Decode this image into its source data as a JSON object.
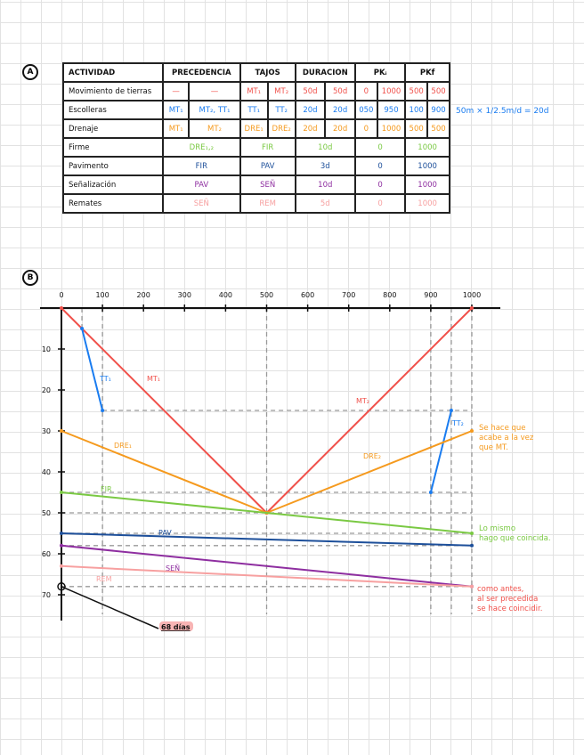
{
  "section_a": {
    "label": "A"
  },
  "section_b": {
    "label": "B"
  },
  "table": {
    "headers": [
      "ACTIVIDAD",
      "PRECEDENCIA",
      "TAJOS",
      "DURACION",
      "PKᵢ",
      "PKf"
    ],
    "rows": [
      {
        "actividad": "Movimiento de tierras",
        "color": "#f0504a",
        "split": true,
        "precedencia": [
          "—",
          "—"
        ],
        "tajos": [
          "MT₁",
          "MT₂"
        ],
        "duracion": [
          "50d",
          "50d"
        ],
        "pki": [
          "0",
          "1000"
        ],
        "pkf": [
          "500",
          "500"
        ]
      },
      {
        "actividad": "Escolleras",
        "color": "#1a7cf0",
        "split": true,
        "precedencia": [
          "MT₁",
          "MT₂, TT₁"
        ],
        "tajos": [
          "TT₁",
          "TT₂"
        ],
        "duracion": [
          "20d",
          "20d"
        ],
        "pki": [
          "050",
          "950"
        ],
        "pkf": [
          "100",
          "900"
        ]
      },
      {
        "actividad": "Drenaje",
        "color": "#f59a1e",
        "split": true,
        "precedencia": [
          "MT₁",
          "MT₂"
        ],
        "tajos": [
          "DRE₁",
          "DRE₂"
        ],
        "duracion": [
          "20d",
          "20d"
        ],
        "pki": [
          "0",
          "1000"
        ],
        "pkf": [
          "500",
          "500"
        ]
      },
      {
        "actividad": "Firme",
        "color": "#7ac943",
        "split": false,
        "precedencia": "DRE₁,₂",
        "tajos": "FIR",
        "duracion": "10d",
        "pki": "0",
        "pkf": "1000"
      },
      {
        "actividad": "Pavimento",
        "color": "#1d4f9a",
        "split": false,
        "precedencia": "FIR",
        "tajos": "PAV",
        "duracion": "3d",
        "pki": "0",
        "pkf": "1000"
      },
      {
        "actividad": "Señalización",
        "color": "#8e2ea0",
        "split": false,
        "precedencia": "PAV",
        "tajos": "SEÑ",
        "duracion": "10d",
        "pki": "0",
        "pkf": "1000"
      },
      {
        "actividad": "Remates",
        "color": "#f7a0a0",
        "split": false,
        "precedencia": "SEÑ",
        "tajos": "REM",
        "duracion": "5d",
        "pki": "0",
        "pkf": "1000"
      }
    ],
    "annotation": "50m × 1/2.5m/d = 20d",
    "annotation_color": "#1a7cf0"
  },
  "chart_data": {
    "type": "line",
    "title": "",
    "xlabel": "",
    "ylabel": "",
    "xlim": [
      0,
      1000
    ],
    "ylim": [
      0,
      70
    ],
    "x_axis_position": "top",
    "y_axis_inverted": true,
    "x_ticks": [
      "0",
      "100",
      "200",
      "300",
      "400",
      "500",
      "600",
      "700",
      "800",
      "900",
      "1000"
    ],
    "y_ticks": [
      "10",
      "20",
      "30",
      "40",
      "50",
      "60",
      "70"
    ],
    "grid": false,
    "series": [
      {
        "name": "MT₁",
        "color": "#f0504a",
        "points": [
          [
            0,
            0
          ],
          [
            500,
            50
          ]
        ]
      },
      {
        "name": "MT₂",
        "color": "#f0504a",
        "points": [
          [
            1000,
            0
          ],
          [
            500,
            50
          ]
        ]
      },
      {
        "name": "TT₁",
        "color": "#1a7cf0",
        "points": [
          [
            50,
            5
          ],
          [
            100,
            25
          ]
        ]
      },
      {
        "name": "TT₂",
        "color": "#1a7cf0",
        "points": [
          [
            900,
            45
          ],
          [
            950,
            25
          ]
        ]
      },
      {
        "name": "DRE₁",
        "color": "#f59a1e",
        "points": [
          [
            0,
            30
          ],
          [
            500,
            50
          ]
        ]
      },
      {
        "name": "DRE₂",
        "color": "#f59a1e",
        "points": [
          [
            500,
            50
          ],
          [
            1000,
            30
          ]
        ]
      },
      {
        "name": "FIR",
        "color": "#7ac943",
        "points": [
          [
            0,
            45
          ],
          [
            1000,
            55
          ]
        ]
      },
      {
        "name": "PAV",
        "color": "#1d4f9a",
        "points": [
          [
            0,
            55
          ],
          [
            1000,
            58
          ]
        ]
      },
      {
        "name": "SEÑ",
        "color": "#8e2ea0",
        "points": [
          [
            0,
            58
          ],
          [
            1000,
            68
          ]
        ]
      },
      {
        "name": "REM",
        "color": "#f7a0a0",
        "points": [
          [
            0,
            63
          ],
          [
            1000,
            68
          ]
        ]
      }
    ],
    "guides_x": [
      50,
      100,
      500,
      900,
      950,
      1000
    ],
    "guides_y": [
      25,
      45,
      50,
      55,
      58,
      68
    ],
    "total_label": "68 días",
    "annotations": [
      {
        "text": [
          "Se hace que",
          "acabe a la vez",
          "que MT."
        ],
        "color": "#f59a1e"
      },
      {
        "text": [
          "Lo mismo",
          "hago que coincida."
        ],
        "color": "#7ac943"
      },
      {
        "text": [
          "como antes,",
          "al ser precedida",
          "se hace coincidir."
        ],
        "color": "#f0504a"
      }
    ]
  }
}
